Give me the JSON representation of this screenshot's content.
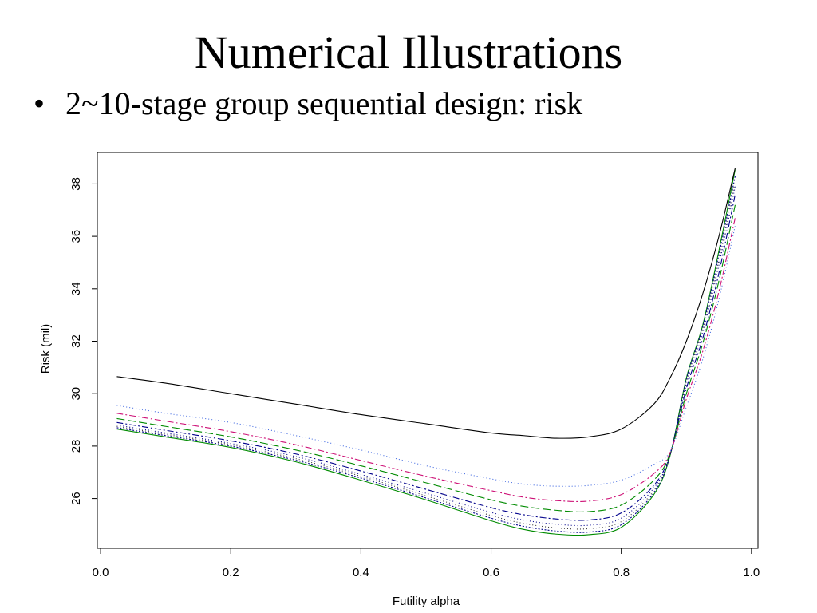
{
  "slide": {
    "title": "Numerical Illustrations",
    "bullet_symbol": "•",
    "bullet_text": "2~10-stage group sequential design: risk"
  },
  "chart_data": {
    "type": "line",
    "xlabel": "Futility alpha",
    "ylabel": "Risk (mil)",
    "xlim": [
      -0.005,
      1.01
    ],
    "ylim": [
      24.1,
      39.2
    ],
    "x_ticks": [
      0.0,
      0.2,
      0.4,
      0.6,
      0.8,
      1.0
    ],
    "x_tick_labels": [
      "0.0",
      "0.2",
      "0.4",
      "0.6",
      "0.8",
      "1.0"
    ],
    "y_ticks": [
      26,
      28,
      30,
      32,
      34,
      36,
      38
    ],
    "y_tick_labels": [
      "26",
      "28",
      "30",
      "32",
      "34",
      "36",
      "38"
    ],
    "grid": false,
    "legend": "none",
    "x": [
      0.025,
      0.1,
      0.2,
      0.3,
      0.4,
      0.5,
      0.6,
      0.65,
      0.7,
      0.75,
      0.8,
      0.85,
      0.875,
      0.9,
      0.925,
      0.95,
      0.975
    ],
    "series": [
      {
        "color": "#000000",
        "dash": "",
        "values": [
          30.65,
          30.4,
          30.0,
          29.6,
          29.2,
          28.85,
          28.5,
          28.4,
          28.3,
          28.35,
          28.65,
          29.6,
          30.6,
          32.0,
          33.8,
          36.0,
          38.6
        ]
      },
      {
        "color": "#4169e1",
        "dash": "1 3",
        "values": [
          29.55,
          29.25,
          28.9,
          28.4,
          27.85,
          27.25,
          26.75,
          26.55,
          26.47,
          26.5,
          26.7,
          27.3,
          27.8,
          29.5,
          31.3,
          33.6,
          36.4
        ]
      },
      {
        "color": "#cd1076",
        "dash": "8 3 2 3",
        "values": [
          29.25,
          28.95,
          28.55,
          28.05,
          27.45,
          26.85,
          26.3,
          26.05,
          25.92,
          25.9,
          26.15,
          26.95,
          27.75,
          29.8,
          31.6,
          33.9,
          36.7
        ]
      },
      {
        "color": "#008b00",
        "dash": "10 4",
        "values": [
          29.05,
          28.75,
          28.35,
          27.85,
          27.25,
          26.6,
          25.95,
          25.7,
          25.55,
          25.5,
          25.75,
          26.7,
          27.72,
          30.0,
          31.9,
          34.3,
          37.2
        ]
      },
      {
        "color": "#00008b",
        "dash": "8 3 2 3",
        "values": [
          28.9,
          28.6,
          28.2,
          27.7,
          27.05,
          26.35,
          25.65,
          25.38,
          25.22,
          25.18,
          25.45,
          26.5,
          27.7,
          30.2,
          32.1,
          34.6,
          37.6
        ]
      },
      {
        "color": "#00008b",
        "dash": "1 3",
        "values": [
          28.8,
          28.5,
          28.1,
          27.6,
          26.92,
          26.2,
          25.47,
          25.18,
          25.02,
          24.98,
          25.25,
          26.4,
          27.68,
          30.35,
          32.3,
          34.9,
          37.9
        ]
      },
      {
        "color": "#333333",
        "dash": "1 3",
        "values": [
          28.75,
          28.45,
          28.05,
          27.52,
          26.85,
          26.1,
          25.35,
          25.05,
          24.88,
          24.85,
          25.12,
          26.3,
          27.66,
          30.45,
          32.45,
          35.1,
          38.1
        ]
      },
      {
        "color": "#00008b",
        "dash": "2 2",
        "values": [
          28.7,
          28.4,
          28.0,
          27.46,
          26.78,
          26.02,
          25.25,
          24.94,
          24.76,
          24.72,
          25.0,
          26.22,
          27.65,
          30.55,
          32.55,
          35.3,
          38.3
        ]
      },
      {
        "color": "#008b00",
        "dash": "",
        "values": [
          28.65,
          28.35,
          27.95,
          27.4,
          26.7,
          25.95,
          25.15,
          24.82,
          24.64,
          24.62,
          24.9,
          26.15,
          27.64,
          30.6,
          32.6,
          35.45,
          38.55
        ]
      }
    ]
  }
}
